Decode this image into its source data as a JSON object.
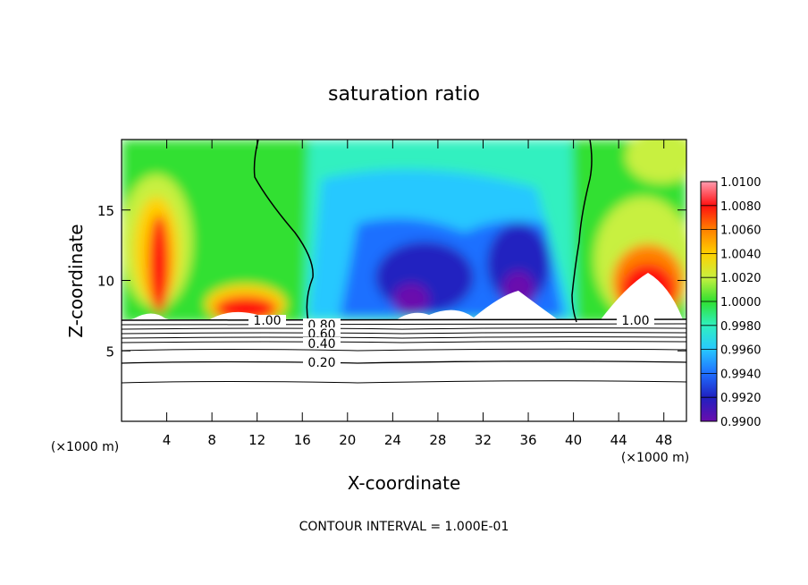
{
  "chart_data": {
    "type": "heatmap",
    "title": "saturation ratio",
    "xlabel": "X-coordinate",
    "ylabel": "Z-coordinate",
    "x_unit_left": "(×1000 m)",
    "x_unit_right": "(×1000 m)",
    "xlim": [
      0,
      50
    ],
    "ylim": [
      0,
      20
    ],
    "x_ticks": [
      "4",
      "8",
      "12",
      "16",
      "20",
      "24",
      "28",
      "32",
      "36",
      "40",
      "44",
      "48"
    ],
    "y_ticks": [
      "5",
      "10",
      "15"
    ],
    "colorbar": {
      "min": 0.99,
      "max": 1.01,
      "labels": [
        "1.0100",
        "1.0080",
        "1.0060",
        "1.0040",
        "1.0020",
        "1.0000",
        "0.9980",
        "0.9960",
        "0.9940",
        "0.9920",
        "0.9900"
      ],
      "colors": [
        "#6a0dad",
        "#2020c0",
        "#1f6fff",
        "#28c8ff",
        "#30f0c0",
        "#30e030",
        "#c8f040",
        "#ffd000",
        "#ff8000",
        "#ff1010",
        "#ff9cb0"
      ]
    },
    "contour_labels": [
      "1.00",
      "0.80",
      "0.60",
      "0.40",
      "0.20",
      "1.00"
    ],
    "contour_interval": "CONTOUR INTERVAL = 1.000E-01"
  }
}
